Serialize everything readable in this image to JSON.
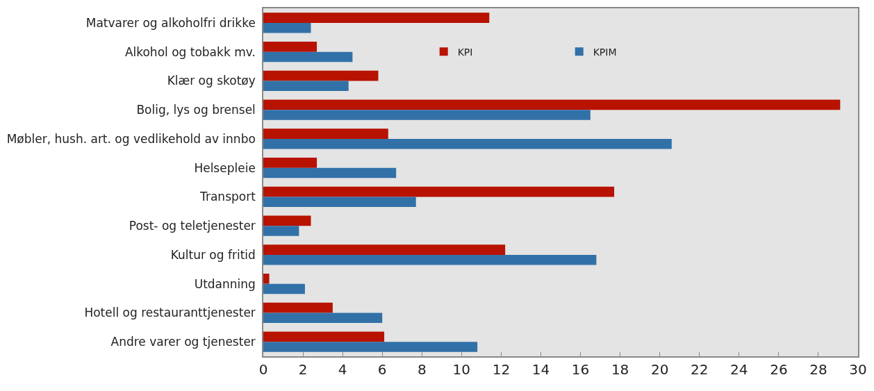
{
  "chart_data": {
    "type": "bar",
    "orientation": "horizontal",
    "categories": [
      "Matvarer og alkoholfri drikke",
      "Alkohol og tobakk mv.",
      "Klær og skotøy",
      "Bolig, lys og brensel",
      "Møbler, hush. art. og vedlikehold av innbo",
      "Helsepleie",
      "Transport",
      "Post- og teletjenester",
      "Kultur og fritid",
      "Utdanning",
      "Hotell og restauranttjenester",
      "Andre varer og tjenester"
    ],
    "series": [
      {
        "name": "KPI",
        "color": "#b81200",
        "values": [
          11.4,
          2.7,
          5.8,
          29.1,
          6.3,
          2.7,
          17.7,
          2.4,
          12.2,
          0.3,
          3.5,
          6.1
        ]
      },
      {
        "name": "KPIM",
        "color": "#3271a8",
        "values": [
          2.4,
          4.5,
          4.3,
          16.5,
          20.6,
          6.7,
          7.7,
          1.8,
          16.8,
          2.1,
          6.0,
          10.8
        ]
      }
    ],
    "xlim": [
      0,
      30
    ],
    "xticks": [
      0,
      2,
      4,
      6,
      8,
      10,
      12,
      14,
      16,
      18,
      20,
      22,
      24,
      26,
      28,
      30
    ],
    "legend": "top",
    "grid": false
  }
}
